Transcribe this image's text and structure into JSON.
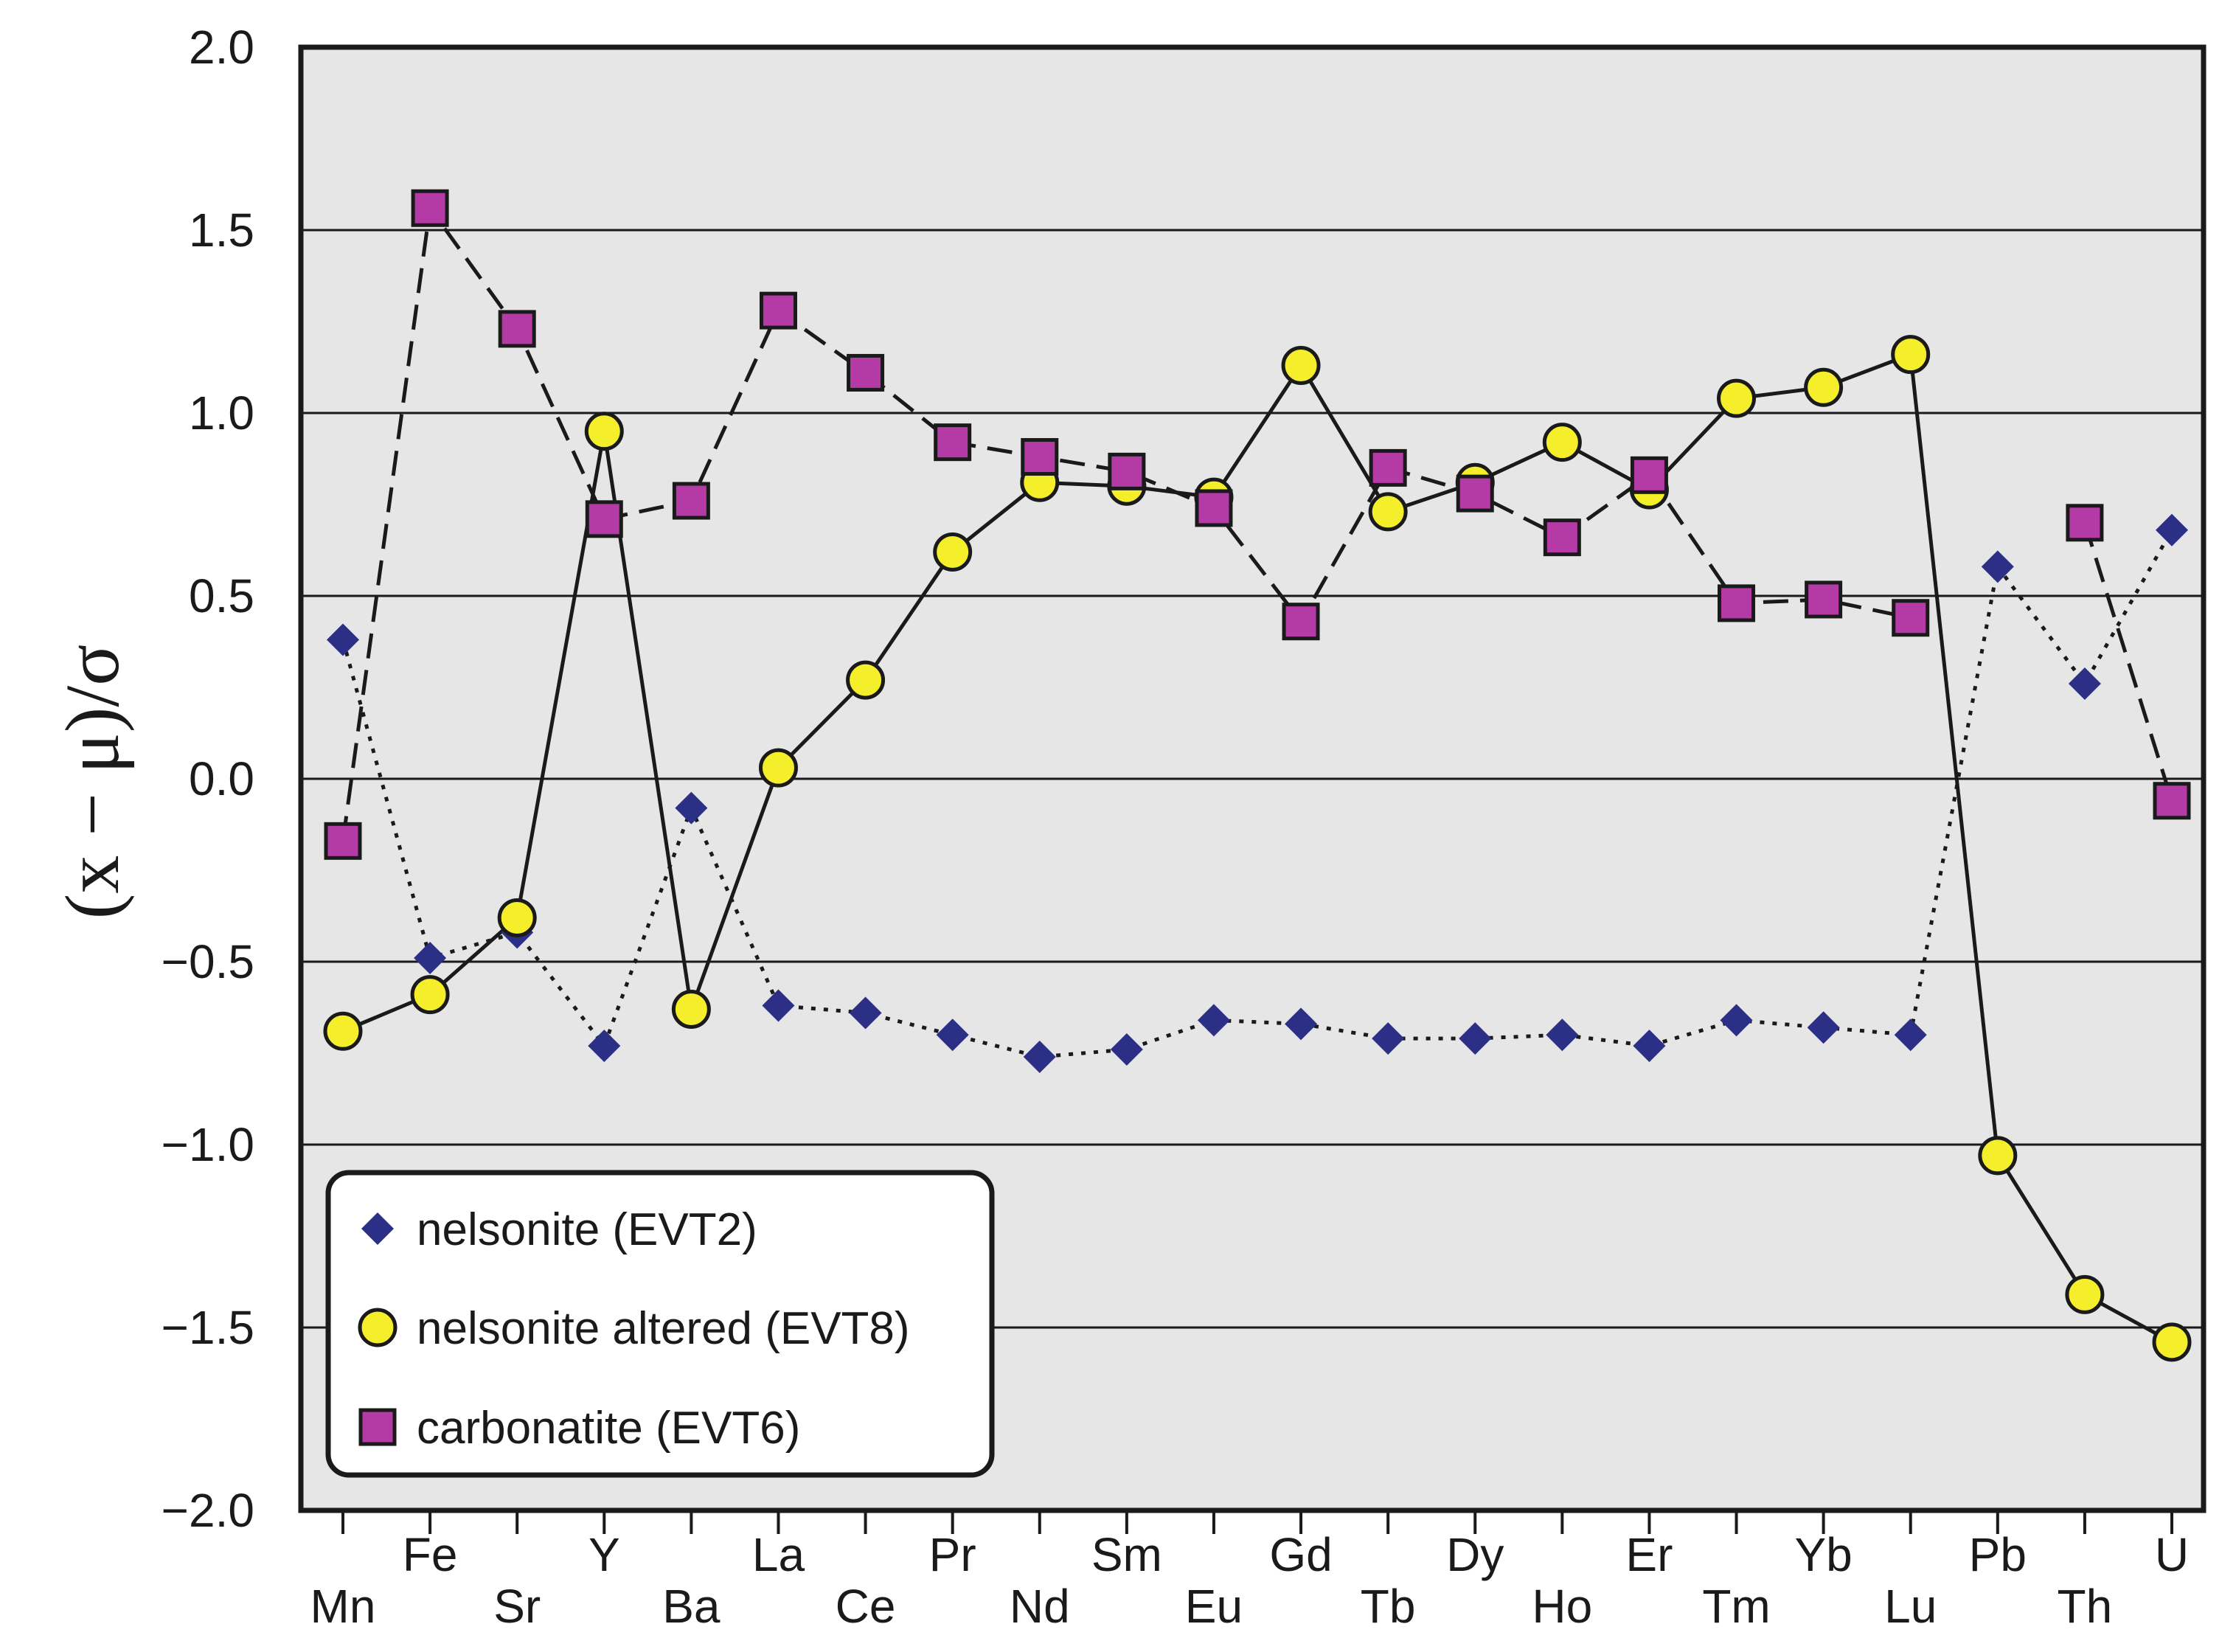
{
  "chart_data": {
    "type": "line",
    "title": "",
    "xlabel": "",
    "ylabel": "(x − μ)/σ",
    "ylim": [
      -2.0,
      2.0
    ],
    "yticks": [
      2.0,
      1.5,
      1.0,
      0.5,
      0.0,
      -0.5,
      -1.0,
      -1.5,
      -2.0
    ],
    "ytick_labels": [
      "2.0",
      "1.5",
      "1.0",
      "0.5",
      "0.0",
      "−0.5",
      "−1.0",
      "−1.5",
      "−2.0"
    ],
    "grid": true,
    "legend_position": "bottom-left",
    "categories": [
      "Mn",
      "Fe",
      "Sr",
      "Y",
      "Ba",
      "La",
      "Ce",
      "Pr",
      "Nd",
      "Sm",
      "Eu",
      "Gd",
      "Tb",
      "Dy",
      "Ho",
      "Er",
      "Tm",
      "Yb",
      "Lu",
      "Pb",
      "Th",
      "U"
    ],
    "series": [
      {
        "name": "nelsonite (EVT2)",
        "marker": "diamond",
        "line": "dotted",
        "color": "#2b2f86",
        "values": [
          0.38,
          -0.49,
          -0.42,
          -0.73,
          -0.08,
          -0.62,
          -0.64,
          -0.7,
          -0.76,
          -0.74,
          -0.66,
          -0.67,
          -0.71,
          -0.71,
          -0.7,
          -0.73,
          -0.66,
          -0.68,
          -0.7,
          0.58,
          0.26,
          0.68
        ]
      },
      {
        "name": "nelsonite altered (EVT8)",
        "marker": "circle",
        "line": "solid",
        "color": "#f4ef2a",
        "values": [
          -0.69,
          -0.59,
          -0.38,
          0.95,
          -0.63,
          0.03,
          0.27,
          0.62,
          0.81,
          0.8,
          0.77,
          1.13,
          0.73,
          0.81,
          0.92,
          0.79,
          1.04,
          1.07,
          1.16,
          -1.03,
          -1.41,
          -1.54
        ]
      },
      {
        "name": "carbonatite (EVT6)",
        "marker": "square",
        "line": "dashed",
        "color": "#b43aa6",
        "values": [
          -0.17,
          1.56,
          1.23,
          0.71,
          0.76,
          1.28,
          1.11,
          0.92,
          0.88,
          0.84,
          0.74,
          0.43,
          0.85,
          0.78,
          0.66,
          0.83,
          0.48,
          0.49,
          0.44,
          null,
          0.7,
          -0.06
        ]
      }
    ]
  },
  "colors": {
    "plot_background": "#e6e6e6",
    "axis": "#1a1a1a"
  }
}
